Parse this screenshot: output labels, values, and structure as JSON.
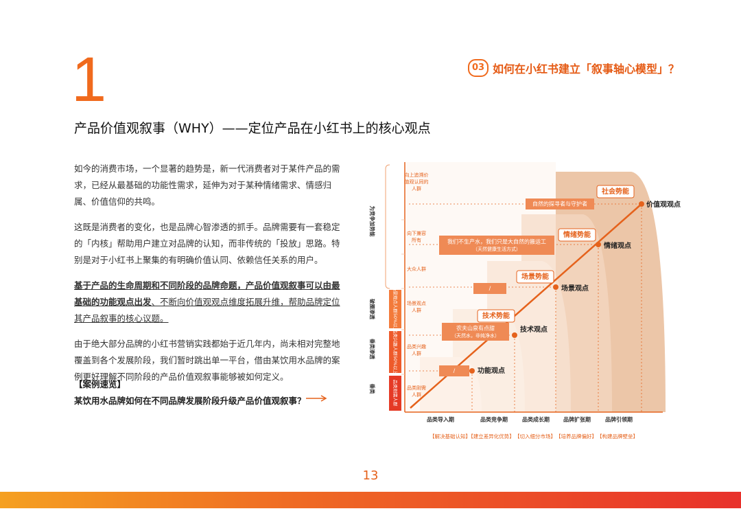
{
  "header": {
    "number": "1",
    "section_num": "03",
    "section_title": "如何在小红书建立「叙事轴心模型」？"
  },
  "title": "产品价值观叙事（WHY）——定位产品在小红书上的核心观点",
  "paragraphs": [
    "如今的消费市场，一个显著的趋势是，新一代消费者对于某件产品的需求，已经从最基础的功能性需求，延伸为对于某种情绪需求、情感归属、价值信仰的共鸣。",
    "这既是消费者的变化，也是品牌心智渗透的抓手。品牌需要有一套稳定的「内核」帮助用户建立对品牌的认知，而非传统的「投放」思路。特别是对于小红书上聚集的有明确价值认同、依赖信任关系的用户。",
    {
      "bold": "基于产品的生命周期和不同阶段的品牌命题，产品价值观叙事可以由最基础的功能观点出发",
      "normal": "、不断向价值观观点维度拓展升维，帮助品牌定位其产品叙事的核心议题。"
    },
    "由于绝大部分品牌的小红书营销实践都始于近几年内，尚未相对完整地覆盖到各个发展阶段，我们暂时跳出单一平台，借由某饮用水品牌的案例更好理解不同阶段的产品价值观叙事能够被如何定义。"
  ],
  "case": {
    "label": "【案例速览】",
    "text": "某饮用水品牌如何在不同品牌发展阶段升级产品价值观叙事？"
  },
  "diagram": {
    "stages": [
      "品类导入期",
      "品类竞争期",
      "品类成长期",
      "品牌扩张期",
      "品牌引领期"
    ],
    "stage_goals": [
      "【解决基础认知】",
      "【建立差异化优势】",
      "【切入细分市场】",
      "【培养品牌偏好】",
      "【构建品牌壁垒】"
    ],
    "points": [
      "功能观点",
      "技术观点",
      "场景观点",
      "情绪观点",
      "价值观观点"
    ],
    "tags": [
      "技术势能",
      "场景势能",
      "情绪势能",
      "社会势能"
    ],
    "quotes": [
      {
        "text": "/"
      },
      {
        "text": "农夫山泉有点甜",
        "sub": "（天然水，非纯净水）"
      },
      {
        "text": "/"
      },
      {
        "text": "我们不生产水，我们只是大自然的搬运工",
        "sub": "（天然健康生活方式）"
      },
      {
        "text": "自然的探寻者与守护者"
      }
    ],
    "audiences": [
      "向上追溯价值观认同的人群",
      "向下兼容所有",
      "大众人群",
      "场景观点人群",
      "品类兴趣人群",
      "品类刚需人群"
    ],
    "side_labels": [
      "为竞争加势能",
      "破圈渗透",
      "垂类渗透",
      "垂类"
    ],
    "box_labels": [
      "场景观点人群50%以上",
      "品类兴趣人群50%以上",
      "品类刚需人群"
    ]
  },
  "page_number": "13"
}
